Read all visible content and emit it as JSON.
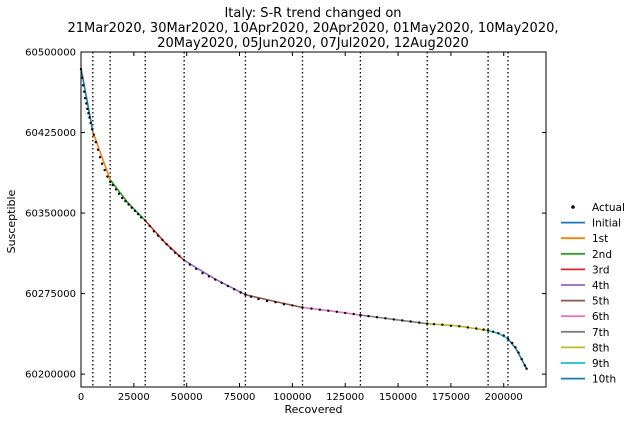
{
  "chart_data": {
    "type": "line",
    "title_lines": [
      "Italy: S-R trend changed on",
      "21Mar2020, 30Mar2020, 10Apr2020, 20Apr2020, 01May2020, 10May2020,",
      "20May2020, 05Jun2020, 07Jul2020, 12Aug2020"
    ],
    "xlabel": "Recovered",
    "ylabel": "Susceptible",
    "xlim": [
      0,
      220000
    ],
    "ylim": [
      60188000,
      60500000
    ],
    "xticks": [
      0,
      25000,
      50000,
      75000,
      100000,
      125000,
      150000,
      175000,
      200000
    ],
    "xtick_labels": [
      "0",
      "25000",
      "50000",
      "75000",
      "100000",
      "125000",
      "150000",
      "175000",
      "200000"
    ],
    "yticks": [
      60200000,
      60275000,
      60350000,
      60425000,
      60500000
    ],
    "ytick_labels": [
      "60200000",
      "60275000",
      "60350000",
      "60425000",
      "60500000"
    ],
    "change_points_x": [
      5600,
      13800,
      30400,
      48800,
      77800,
      104800,
      132200,
      163800,
      192600,
      202000
    ],
    "legend": [
      "Actual",
      "Initial",
      "1st",
      "2nd",
      "3rd",
      "4th",
      "5th",
      "6th",
      "7th",
      "8th",
      "9th",
      "10th"
    ],
    "colors": [
      "#1f77b4",
      "#ff7f0e",
      "#2ca02c",
      "#d62728",
      "#9467bd",
      "#8c564b",
      "#e377c2",
      "#7f7f7f",
      "#bcbd22",
      "#17becf",
      "#1f77b4"
    ],
    "actual_points": [
      [
        0,
        60484000
      ],
      [
        500,
        60476000
      ],
      [
        1000,
        60469000
      ],
      [
        1500,
        60463000
      ],
      [
        2000,
        60457000
      ],
      [
        2500,
        60452000
      ],
      [
        3000,
        60447000
      ],
      [
        3500,
        60443000
      ],
      [
        4000,
        60439000
      ],
      [
        4600,
        60434000
      ],
      [
        5300,
        60428000
      ],
      [
        6000,
        60423000
      ],
      [
        7000,
        60416000
      ],
      [
        8000,
        60409000
      ],
      [
        9000,
        60402000
      ],
      [
        10000,
        60396000
      ],
      [
        11200,
        60390000
      ],
      [
        12500,
        60384000
      ],
      [
        13800,
        60379000
      ],
      [
        15000,
        60376000
      ],
      [
        16500,
        60372000
      ],
      [
        18000,
        60368000
      ],
      [
        19500,
        60364000
      ],
      [
        21000,
        60361000
      ],
      [
        22500,
        60358000
      ],
      [
        24000,
        60355000
      ],
      [
        25500,
        60352000
      ],
      [
        27000,
        60349000
      ],
      [
        28500,
        60346000
      ],
      [
        30400,
        60343000
      ],
      [
        32500,
        60338000
      ],
      [
        34500,
        60333000
      ],
      [
        36500,
        60329000
      ],
      [
        38500,
        60325000
      ],
      [
        40500,
        60321000
      ],
      [
        42500,
        60317000
      ],
      [
        44500,
        60313000
      ],
      [
        46500,
        60310000
      ],
      [
        48800,
        60306000
      ],
      [
        51500,
        60302000
      ],
      [
        54500,
        60298000
      ],
      [
        57500,
        60294000
      ],
      [
        60500,
        60291000
      ],
      [
        63500,
        60288000
      ],
      [
        66500,
        60285000
      ],
      [
        69500,
        60282000
      ],
      [
        72500,
        60279000
      ],
      [
        75500,
        60276000
      ],
      [
        77800,
        60274000
      ],
      [
        80500,
        60272000
      ],
      [
        84000,
        60270000
      ],
      [
        88000,
        60268000
      ],
      [
        92000,
        60267000
      ],
      [
        96000,
        60265000
      ],
      [
        100000,
        60264000
      ],
      [
        104800,
        60262000
      ],
      [
        109000,
        60261000
      ],
      [
        113000,
        60260000
      ],
      [
        117000,
        60259000
      ],
      [
        121000,
        60258000
      ],
      [
        125000,
        60257000
      ],
      [
        129000,
        60256000
      ],
      [
        132200,
        60255000
      ],
      [
        136000,
        60254000
      ],
      [
        140000,
        60253000
      ],
      [
        144000,
        60252000
      ],
      [
        148000,
        60251000
      ],
      [
        152000,
        60250000
      ],
      [
        156000,
        60249000
      ],
      [
        160000,
        60248000
      ],
      [
        163800,
        60247000
      ],
      [
        167000,
        60246500
      ],
      [
        171000,
        60246000
      ],
      [
        175000,
        60245000
      ],
      [
        179000,
        60244500
      ],
      [
        183000,
        60243500
      ],
      [
        187000,
        60242500
      ],
      [
        190500,
        60241500
      ],
      [
        192600,
        60240500
      ],
      [
        195000,
        60239500
      ],
      [
        197500,
        60238000
      ],
      [
        200000,
        60236000
      ],
      [
        202000,
        60233000
      ],
      [
        204000,
        60229000
      ],
      [
        205500,
        60225000
      ],
      [
        207000,
        60220000
      ],
      [
        208500,
        60214000
      ],
      [
        210000,
        60208000
      ],
      [
        210800,
        60205000
      ]
    ],
    "segments": [
      [
        [
          0,
          60485000
        ],
        [
          5600,
          60426000
        ]
      ],
      [
        [
          5600,
          60426000
        ],
        [
          13800,
          60381000
        ]
      ],
      [
        [
          13800,
          60381000
        ],
        [
          22000,
          60360000
        ],
        [
          30400,
          60343000
        ]
      ],
      [
        [
          30400,
          60343000
        ],
        [
          40000,
          60322000
        ],
        [
          48800,
          60306000
        ]
      ],
      [
        [
          48800,
          60306000
        ],
        [
          63000,
          60289000
        ],
        [
          77800,
          60274000
        ]
      ],
      [
        [
          77800,
          60274000
        ],
        [
          91000,
          60268000
        ],
        [
          104800,
          60262000
        ]
      ],
      [
        [
          104800,
          60262000
        ],
        [
          118000,
          60259000
        ],
        [
          132200,
          60255000
        ]
      ],
      [
        [
          132200,
          60255000
        ],
        [
          148000,
          60251000
        ],
        [
          163800,
          60247000
        ]
      ],
      [
        [
          163800,
          60247000
        ],
        [
          178000,
          60245000
        ],
        [
          192600,
          60240500
        ]
      ],
      [
        [
          192600,
          60240500
        ],
        [
          197500,
          60238000
        ],
        [
          202000,
          60233000
        ]
      ],
      [
        [
          202000,
          60233000
        ],
        [
          206000,
          60223000
        ],
        [
          210800,
          60205000
        ]
      ]
    ]
  }
}
